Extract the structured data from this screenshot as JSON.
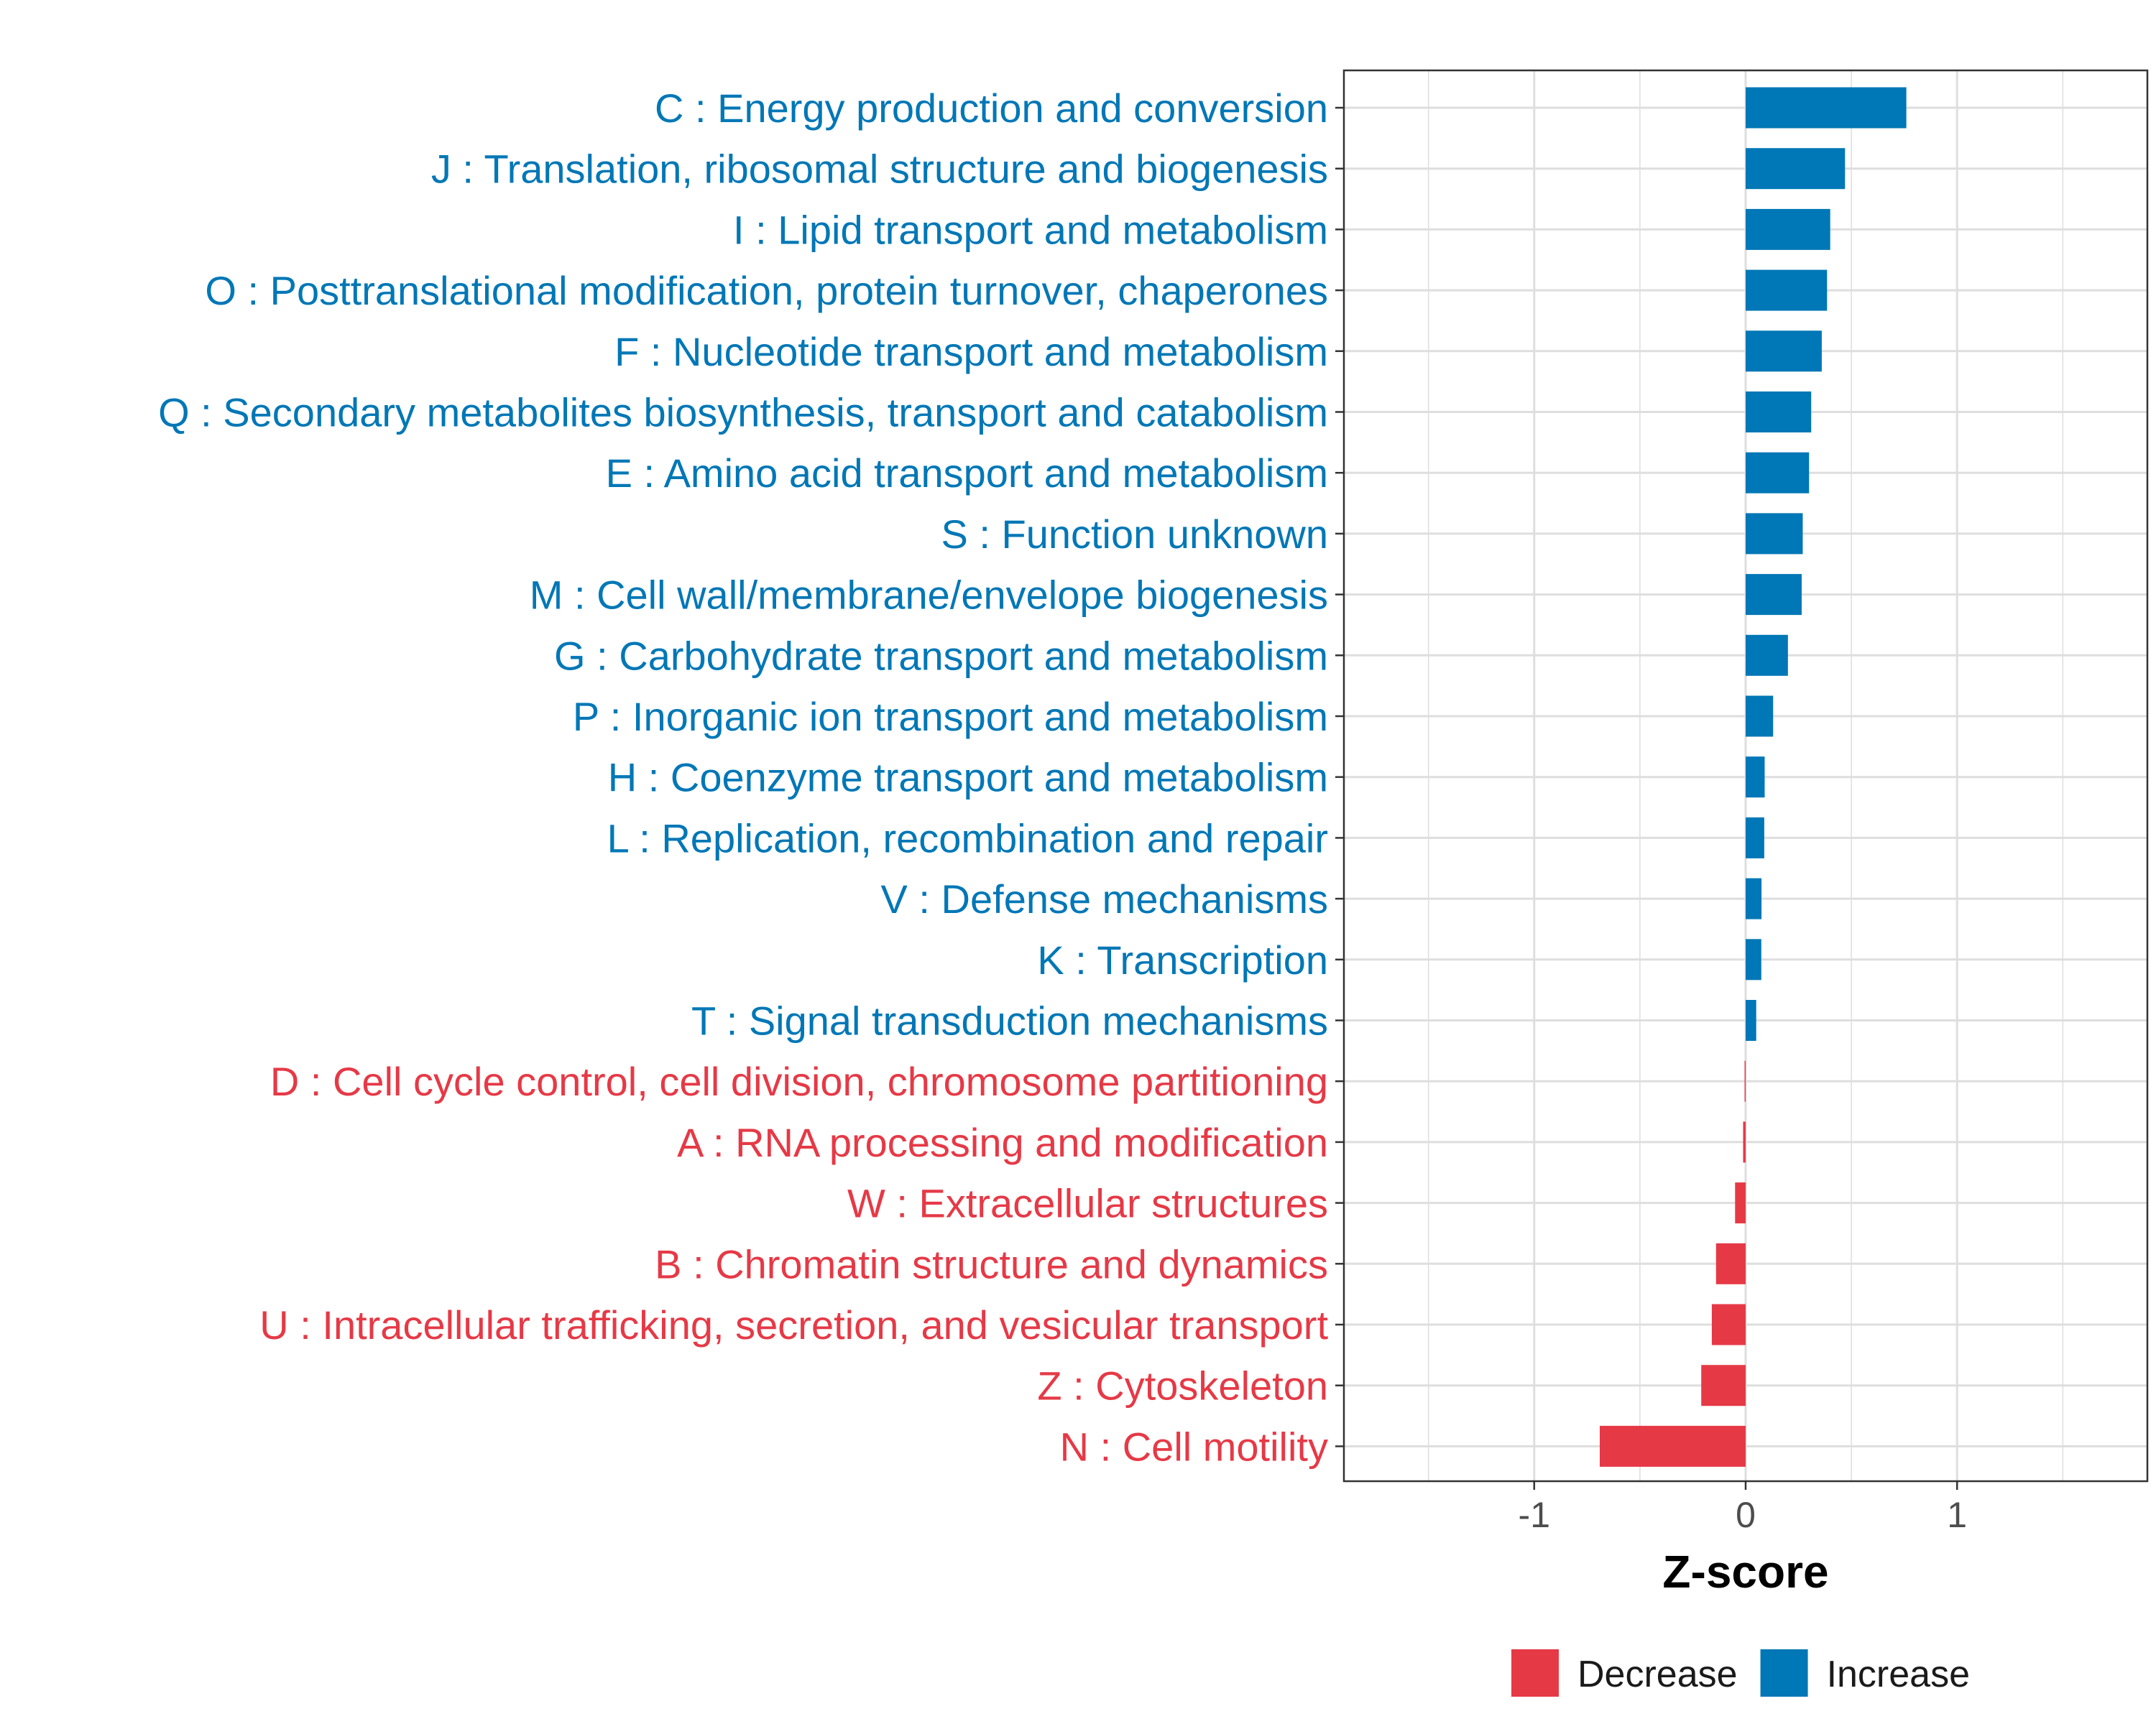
{
  "chart_data": {
    "type": "bar",
    "orientation": "horizontal",
    "xlabel": "Z-score",
    "ylabel": "",
    "xlim": [
      -1.9,
      1.9
    ],
    "xticks": [
      {
        "value": -1,
        "label": "-1"
      },
      {
        "value": 0,
        "label": "0"
      },
      {
        "value": 1,
        "label": "1"
      }
    ],
    "grid": true,
    "colors": {
      "Decrease": "#e63946",
      "Increase": "#0077b6"
    },
    "legend": {
      "position": "bottom",
      "items": [
        {
          "name": "Decrease",
          "color": "#e63946"
        },
        {
          "name": "Increase",
          "color": "#0077b6"
        }
      ]
    },
    "categories": [
      {
        "label": "C : Energy production and conversion",
        "value": 0.76,
        "group": "Increase"
      },
      {
        "label": "J : Translation, ribosomal structure and biogenesis",
        "value": 0.47,
        "group": "Increase"
      },
      {
        "label": "I : Lipid transport and metabolism",
        "value": 0.4,
        "group": "Increase"
      },
      {
        "label": "O : Posttranslational modification, protein turnover, chaperones",
        "value": 0.385,
        "group": "Increase"
      },
      {
        "label": "F : Nucleotide transport and metabolism",
        "value": 0.36,
        "group": "Increase"
      },
      {
        "label": "Q : Secondary metabolites biosynthesis, transport and catabolism",
        "value": 0.31,
        "group": "Increase"
      },
      {
        "label": "E : Amino acid transport and metabolism",
        "value": 0.3,
        "group": "Increase"
      },
      {
        "label": "S : Function unknown",
        "value": 0.27,
        "group": "Increase"
      },
      {
        "label": "M : Cell wall/membrane/envelope biogenesis",
        "value": 0.265,
        "group": "Increase"
      },
      {
        "label": "G : Carbohydrate transport and metabolism",
        "value": 0.2,
        "group": "Increase"
      },
      {
        "label": "P : Inorganic ion transport and metabolism",
        "value": 0.13,
        "group": "Increase"
      },
      {
        "label": "H : Coenzyme transport and metabolism",
        "value": 0.09,
        "group": "Increase"
      },
      {
        "label": "L : Replication, recombination and repair",
        "value": 0.088,
        "group": "Increase"
      },
      {
        "label": "V : Defense mechanisms",
        "value": 0.075,
        "group": "Increase"
      },
      {
        "label": "K : Transcription",
        "value": 0.074,
        "group": "Increase"
      },
      {
        "label": "T : Signal transduction mechanisms",
        "value": 0.05,
        "group": "Increase"
      },
      {
        "label": "D : Cell cycle control, cell division, chromosome partitioning",
        "value": -0.005,
        "group": "Decrease"
      },
      {
        "label": "A : RNA processing and modification",
        "value": -0.012,
        "group": "Decrease"
      },
      {
        "label": "W : Extracellular structures",
        "value": -0.05,
        "group": "Decrease"
      },
      {
        "label": "B : Chromatin structure and dynamics",
        "value": -0.14,
        "group": "Decrease"
      },
      {
        "label": "U : Intracellular trafficking, secretion, and vesicular transport",
        "value": -0.16,
        "group": "Decrease"
      },
      {
        "label": "Z : Cytoskeleton",
        "value": -0.21,
        "group": "Decrease"
      },
      {
        "label": "N : Cell motility",
        "value": -0.69,
        "group": "Decrease"
      }
    ]
  }
}
